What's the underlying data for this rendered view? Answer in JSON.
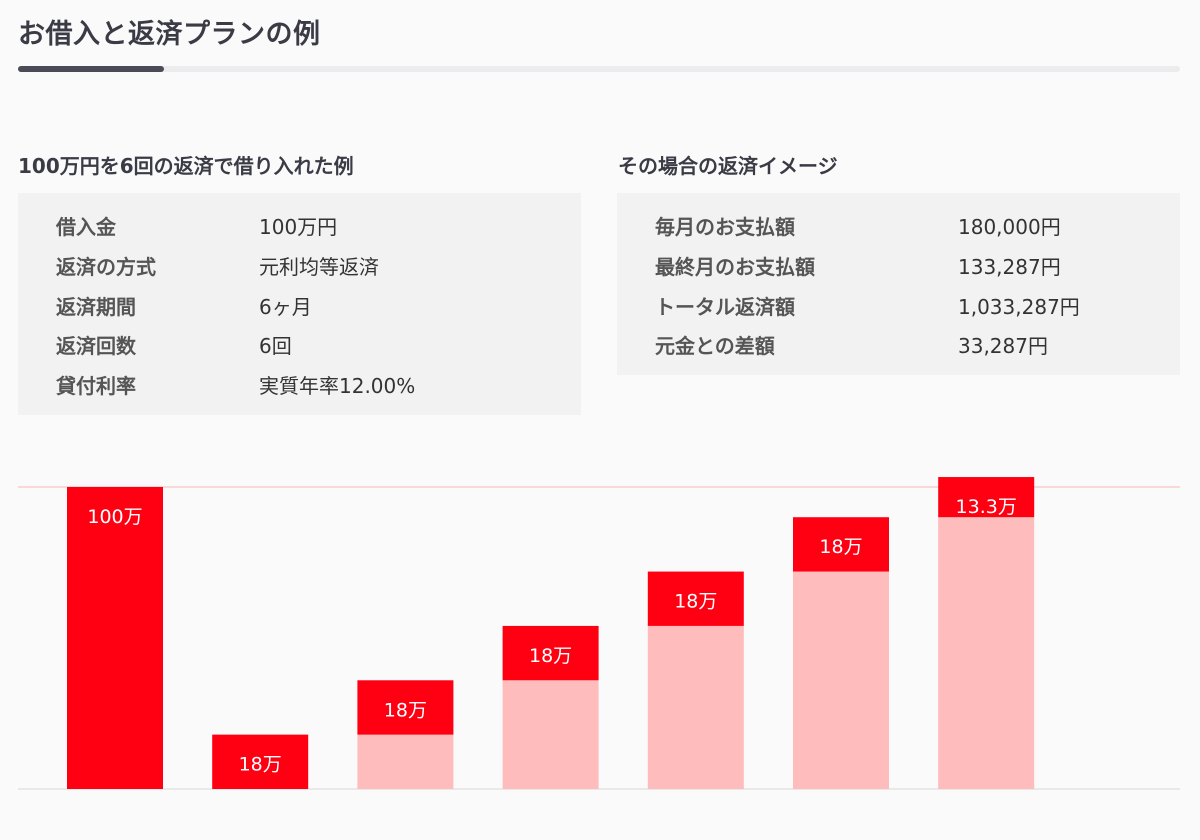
{
  "page": {
    "title": "お借入と返済プランの例"
  },
  "left_panel": {
    "heading": "100万円を6回の返済で借り入れた例",
    "rows": [
      {
        "key": "借入金",
        "value": "100万円"
      },
      {
        "key": "返済の方式",
        "value": "元利均等返済"
      },
      {
        "key": "返済期間",
        "value": "6ヶ月"
      },
      {
        "key": "返済回数",
        "value": "6回"
      },
      {
        "key": "貸付利率",
        "value": "実質年率12.00%"
      }
    ]
  },
  "right_panel": {
    "heading": "その場合の返済イメージ",
    "rows": [
      {
        "key": "毎月のお支払額",
        "value": "180,000円"
      },
      {
        "key": "最終月のお支払額",
        "value": "133,287円"
      },
      {
        "key": "トータル返済額",
        "value": "1,033,287円"
      },
      {
        "key": "元金との差額",
        "value": "33,287円"
      }
    ]
  },
  "colors": {
    "accent": "#ff0013",
    "bar_light": "#ffbcbc",
    "reference_line": "#f5b5b5",
    "baseline": "#d8d8d8"
  },
  "chart_data": {
    "type": "bar",
    "unit": "万",
    "reference_line": 100,
    "bars": [
      {
        "cumulative_before": 0,
        "value": 100,
        "label": "100万",
        "kind": "loan"
      },
      {
        "cumulative_before": 0,
        "value": 18,
        "label": "18万",
        "kind": "payment"
      },
      {
        "cumulative_before": 18,
        "value": 18,
        "label": "18万",
        "kind": "payment"
      },
      {
        "cumulative_before": 36,
        "value": 18,
        "label": "18万",
        "kind": "payment"
      },
      {
        "cumulative_before": 54,
        "value": 18,
        "label": "18万",
        "kind": "payment"
      },
      {
        "cumulative_before": 72,
        "value": 18,
        "label": "18万",
        "kind": "payment"
      },
      {
        "cumulative_before": 90,
        "value": 13.3,
        "label": "13.3万",
        "kind": "payment"
      }
    ]
  }
}
